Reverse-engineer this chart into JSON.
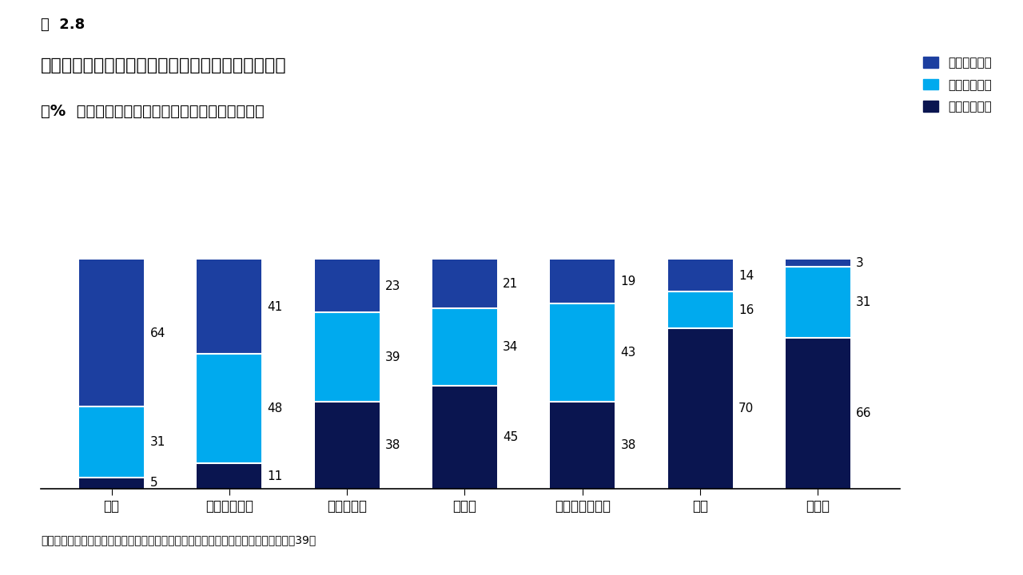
{
  "title_line1": "図  2.8",
  "title_line2": "地域別のプライベート・クレジットの魅力の度合い",
  "title_line3": "（%  引用、ソブリン・ウェルス・ファンドのみ）",
  "footnote": "以下の地域のプライベート・クレジットはどの程度魅力的ですか？に対する回答数：39。",
  "categories": [
    "米国",
    "西ヨーロッパ",
    "東南アジア",
    "インド",
    "オーストラリア",
    "中国",
    "中南米"
  ],
  "very_attractive": [
    64,
    41,
    23,
    21,
    19,
    14,
    3
  ],
  "somewhat_attractive": [
    31,
    48,
    39,
    34,
    43,
    16,
    31
  ],
  "not_attractive": [
    5,
    11,
    38,
    45,
    38,
    70,
    66
  ],
  "color_very": "#1c3fa0",
  "color_somewhat": "#00aaee",
  "color_not": "#0a1550",
  "legend_labels": [
    "非常に魅力的",
    "多少は魅力的",
    "魅力的でない"
  ],
  "background_color": "#ffffff",
  "bar_width": 0.55,
  "ylim": [
    0,
    108
  ]
}
